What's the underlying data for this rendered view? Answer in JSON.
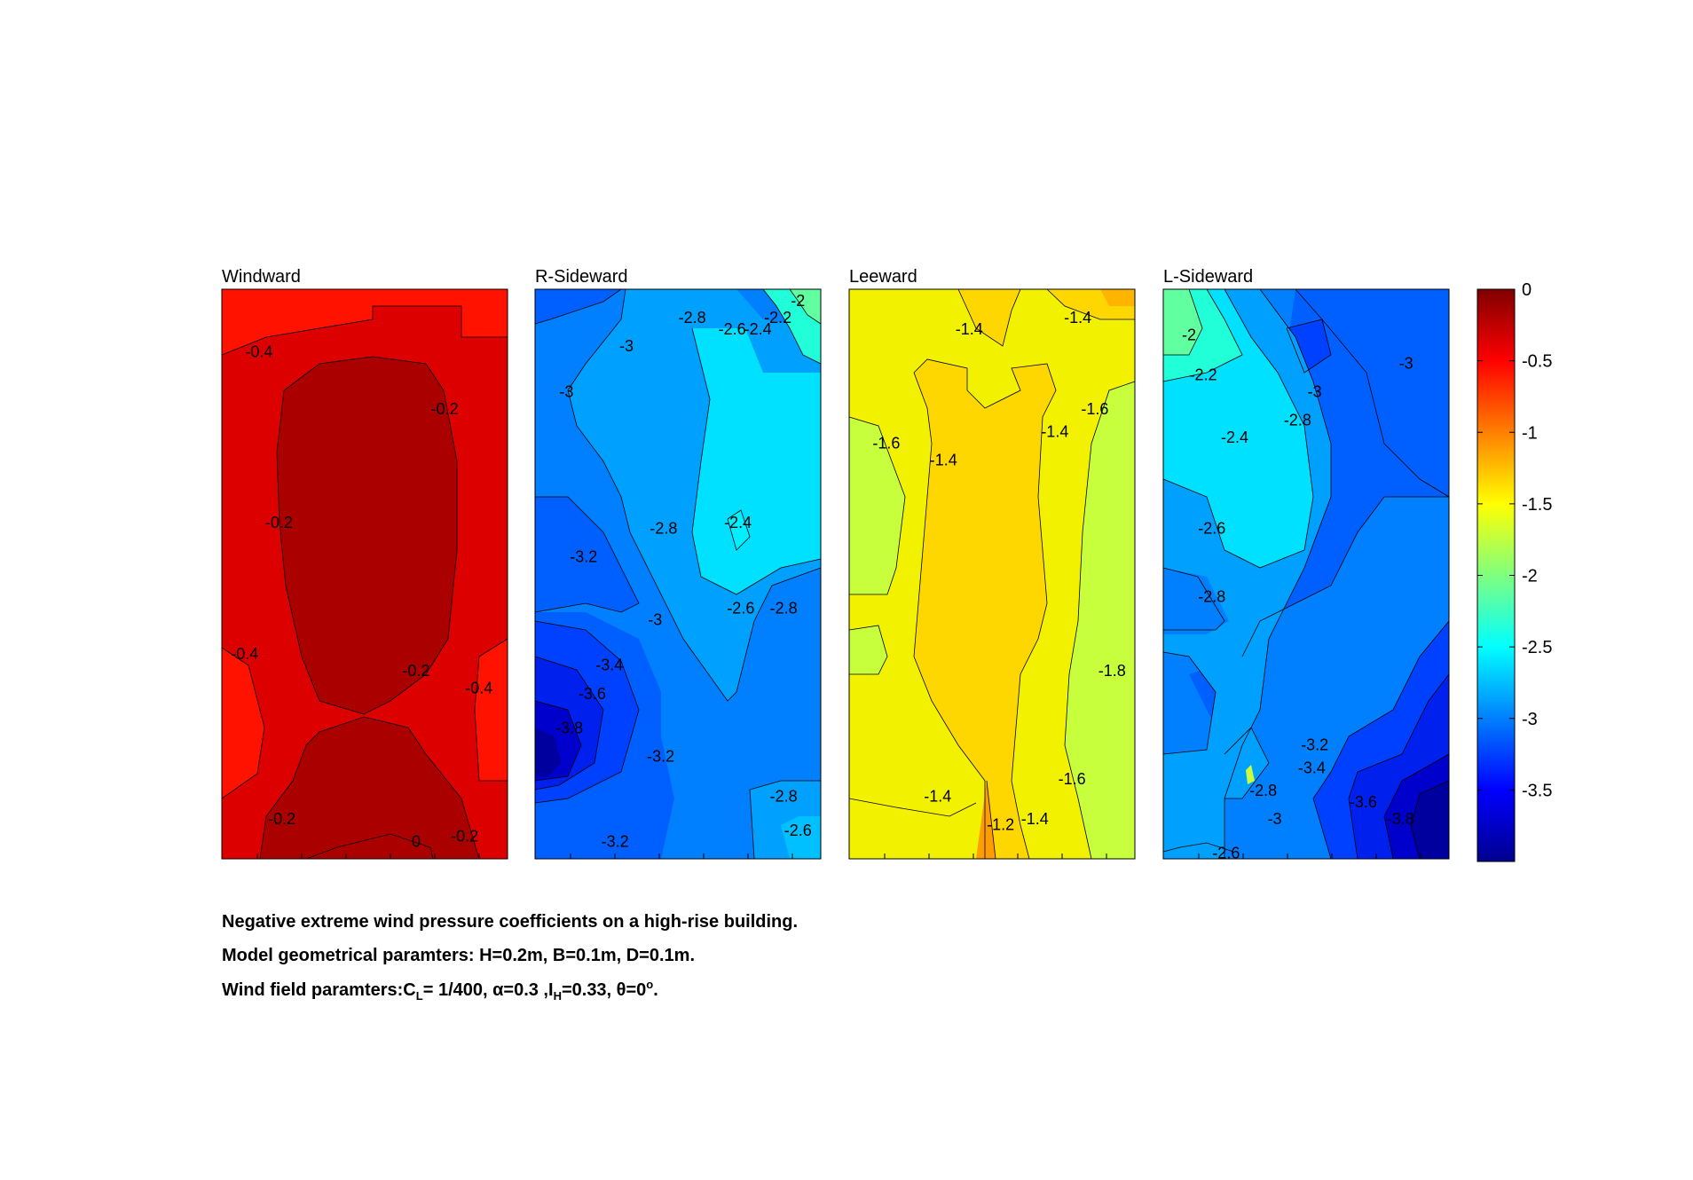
{
  "chart_data": {
    "type": "heatmap",
    "panels": [
      {
        "title": "Windward",
        "contour_labels": [
          {
            "text": "-0.4",
            "x": 0.13,
            "y": 0.11
          },
          {
            "text": "-0.2",
            "x": 0.78,
            "y": 0.21
          },
          {
            "text": "-0.2",
            "x": 0.2,
            "y": 0.41
          },
          {
            "text": "-0.4",
            "x": 0.08,
            "y": 0.64
          },
          {
            "text": "-0.2",
            "x": 0.68,
            "y": 0.67
          },
          {
            "text": "-0.4",
            "x": 0.9,
            "y": 0.7
          },
          {
            "text": "-0.2",
            "x": 0.21,
            "y": 0.93
          },
          {
            "text": "0",
            "x": 0.68,
            "y": 0.97
          },
          {
            "text": "-0.2",
            "x": 0.85,
            "y": 0.96
          }
        ]
      },
      {
        "title": "R-Sideward",
        "contour_labels": [
          {
            "text": "-2.8",
            "x": 0.55,
            "y": 0.05
          },
          {
            "text": "-2.6",
            "x": 0.69,
            "y": 0.07
          },
          {
            "text": "-2.4",
            "x": 0.78,
            "y": 0.07
          },
          {
            "text": "-2.2",
            "x": 0.85,
            "y": 0.05
          },
          {
            "text": "-2",
            "x": 0.92,
            "y": 0.02
          },
          {
            "text": "-3",
            "x": 0.32,
            "y": 0.1
          },
          {
            "text": "-3",
            "x": 0.11,
            "y": 0.18
          },
          {
            "text": "-2.8",
            "x": 0.45,
            "y": 0.42
          },
          {
            "text": "-2.4",
            "x": 0.71,
            "y": 0.41
          },
          {
            "text": "-3.2",
            "x": 0.17,
            "y": 0.47
          },
          {
            "text": "-3",
            "x": 0.42,
            "y": 0.58
          },
          {
            "text": "-2.6",
            "x": 0.72,
            "y": 0.56
          },
          {
            "text": "-2.8",
            "x": 0.87,
            "y": 0.56
          },
          {
            "text": "-3.4",
            "x": 0.26,
            "y": 0.66
          },
          {
            "text": "-3.6",
            "x": 0.2,
            "y": 0.71
          },
          {
            "text": "-3.8",
            "x": 0.12,
            "y": 0.77
          },
          {
            "text": "-3.2",
            "x": 0.44,
            "y": 0.82
          },
          {
            "text": "-2.8",
            "x": 0.87,
            "y": 0.89
          },
          {
            "text": "-2.6",
            "x": 0.92,
            "y": 0.95
          },
          {
            "text": "-3.2",
            "x": 0.28,
            "y": 0.97
          }
        ]
      },
      {
        "title": "Leeward",
        "contour_labels": [
          {
            "text": "-1.4",
            "x": 0.42,
            "y": 0.07
          },
          {
            "text": "-1.4",
            "x": 0.8,
            "y": 0.05
          },
          {
            "text": "-1.6",
            "x": 0.13,
            "y": 0.27
          },
          {
            "text": "-1.4",
            "x": 0.33,
            "y": 0.3
          },
          {
            "text": "-1.4",
            "x": 0.72,
            "y": 0.25
          },
          {
            "text": "-1.6",
            "x": 0.86,
            "y": 0.21
          },
          {
            "text": "-1.8",
            "x": 0.92,
            "y": 0.67
          },
          {
            "text": "-1.6",
            "x": 0.78,
            "y": 0.86
          },
          {
            "text": "-1.4",
            "x": 0.31,
            "y": 0.89
          },
          {
            "text": "-1.2",
            "x": 0.53,
            "y": 0.94
          },
          {
            "text": "-1.4",
            "x": 0.65,
            "y": 0.93
          }
        ]
      },
      {
        "title": "L-Sideward",
        "contour_labels": [
          {
            "text": "-2",
            "x": 0.09,
            "y": 0.08
          },
          {
            "text": "-2.2",
            "x": 0.14,
            "y": 0.15
          },
          {
            "text": "-2.4",
            "x": 0.25,
            "y": 0.26
          },
          {
            "text": "-3",
            "x": 0.53,
            "y": 0.18
          },
          {
            "text": "-2.8",
            "x": 0.47,
            "y": 0.23
          },
          {
            "text": "-3",
            "x": 0.85,
            "y": 0.13
          },
          {
            "text": "-2.6",
            "x": 0.17,
            "y": 0.42
          },
          {
            "text": "-2.8",
            "x": 0.17,
            "y": 0.54
          },
          {
            "text": "-3.2",
            "x": 0.53,
            "y": 0.8
          },
          {
            "text": "-3.4",
            "x": 0.52,
            "y": 0.84
          },
          {
            "text": "-2.8",
            "x": 0.35,
            "y": 0.88
          },
          {
            "text": "-3",
            "x": 0.39,
            "y": 0.93
          },
          {
            "text": "-3.6",
            "x": 0.7,
            "y": 0.9
          },
          {
            "text": "-3.8",
            "x": 0.83,
            "y": 0.93
          },
          {
            "text": "-2.6",
            "x": 0.22,
            "y": 0.99
          }
        ]
      }
    ],
    "colorbar": {
      "ticks": [
        "0",
        "-0.5",
        "-1",
        "-1.5",
        "-2",
        "-2.5",
        "-3",
        "-3.5"
      ],
      "range": [
        -4.0,
        0.0
      ],
      "colormap": "jet"
    }
  },
  "caption": {
    "line1": "Negative extreme wind pressure coefficients on a high-rise building.",
    "line2": "Model geometrical paramters: H=0.2m, B=0.1m, D=0.1m.",
    "line3_a": "Wind field paramters:C",
    "line3_sub1": "L",
    "line3_b": "= 1/400, α=0.3 ,I",
    "line3_sub2": "H",
    "line3_c": "=0.33, θ=0",
    "line3_sup": "o",
    "line3_d": "."
  }
}
